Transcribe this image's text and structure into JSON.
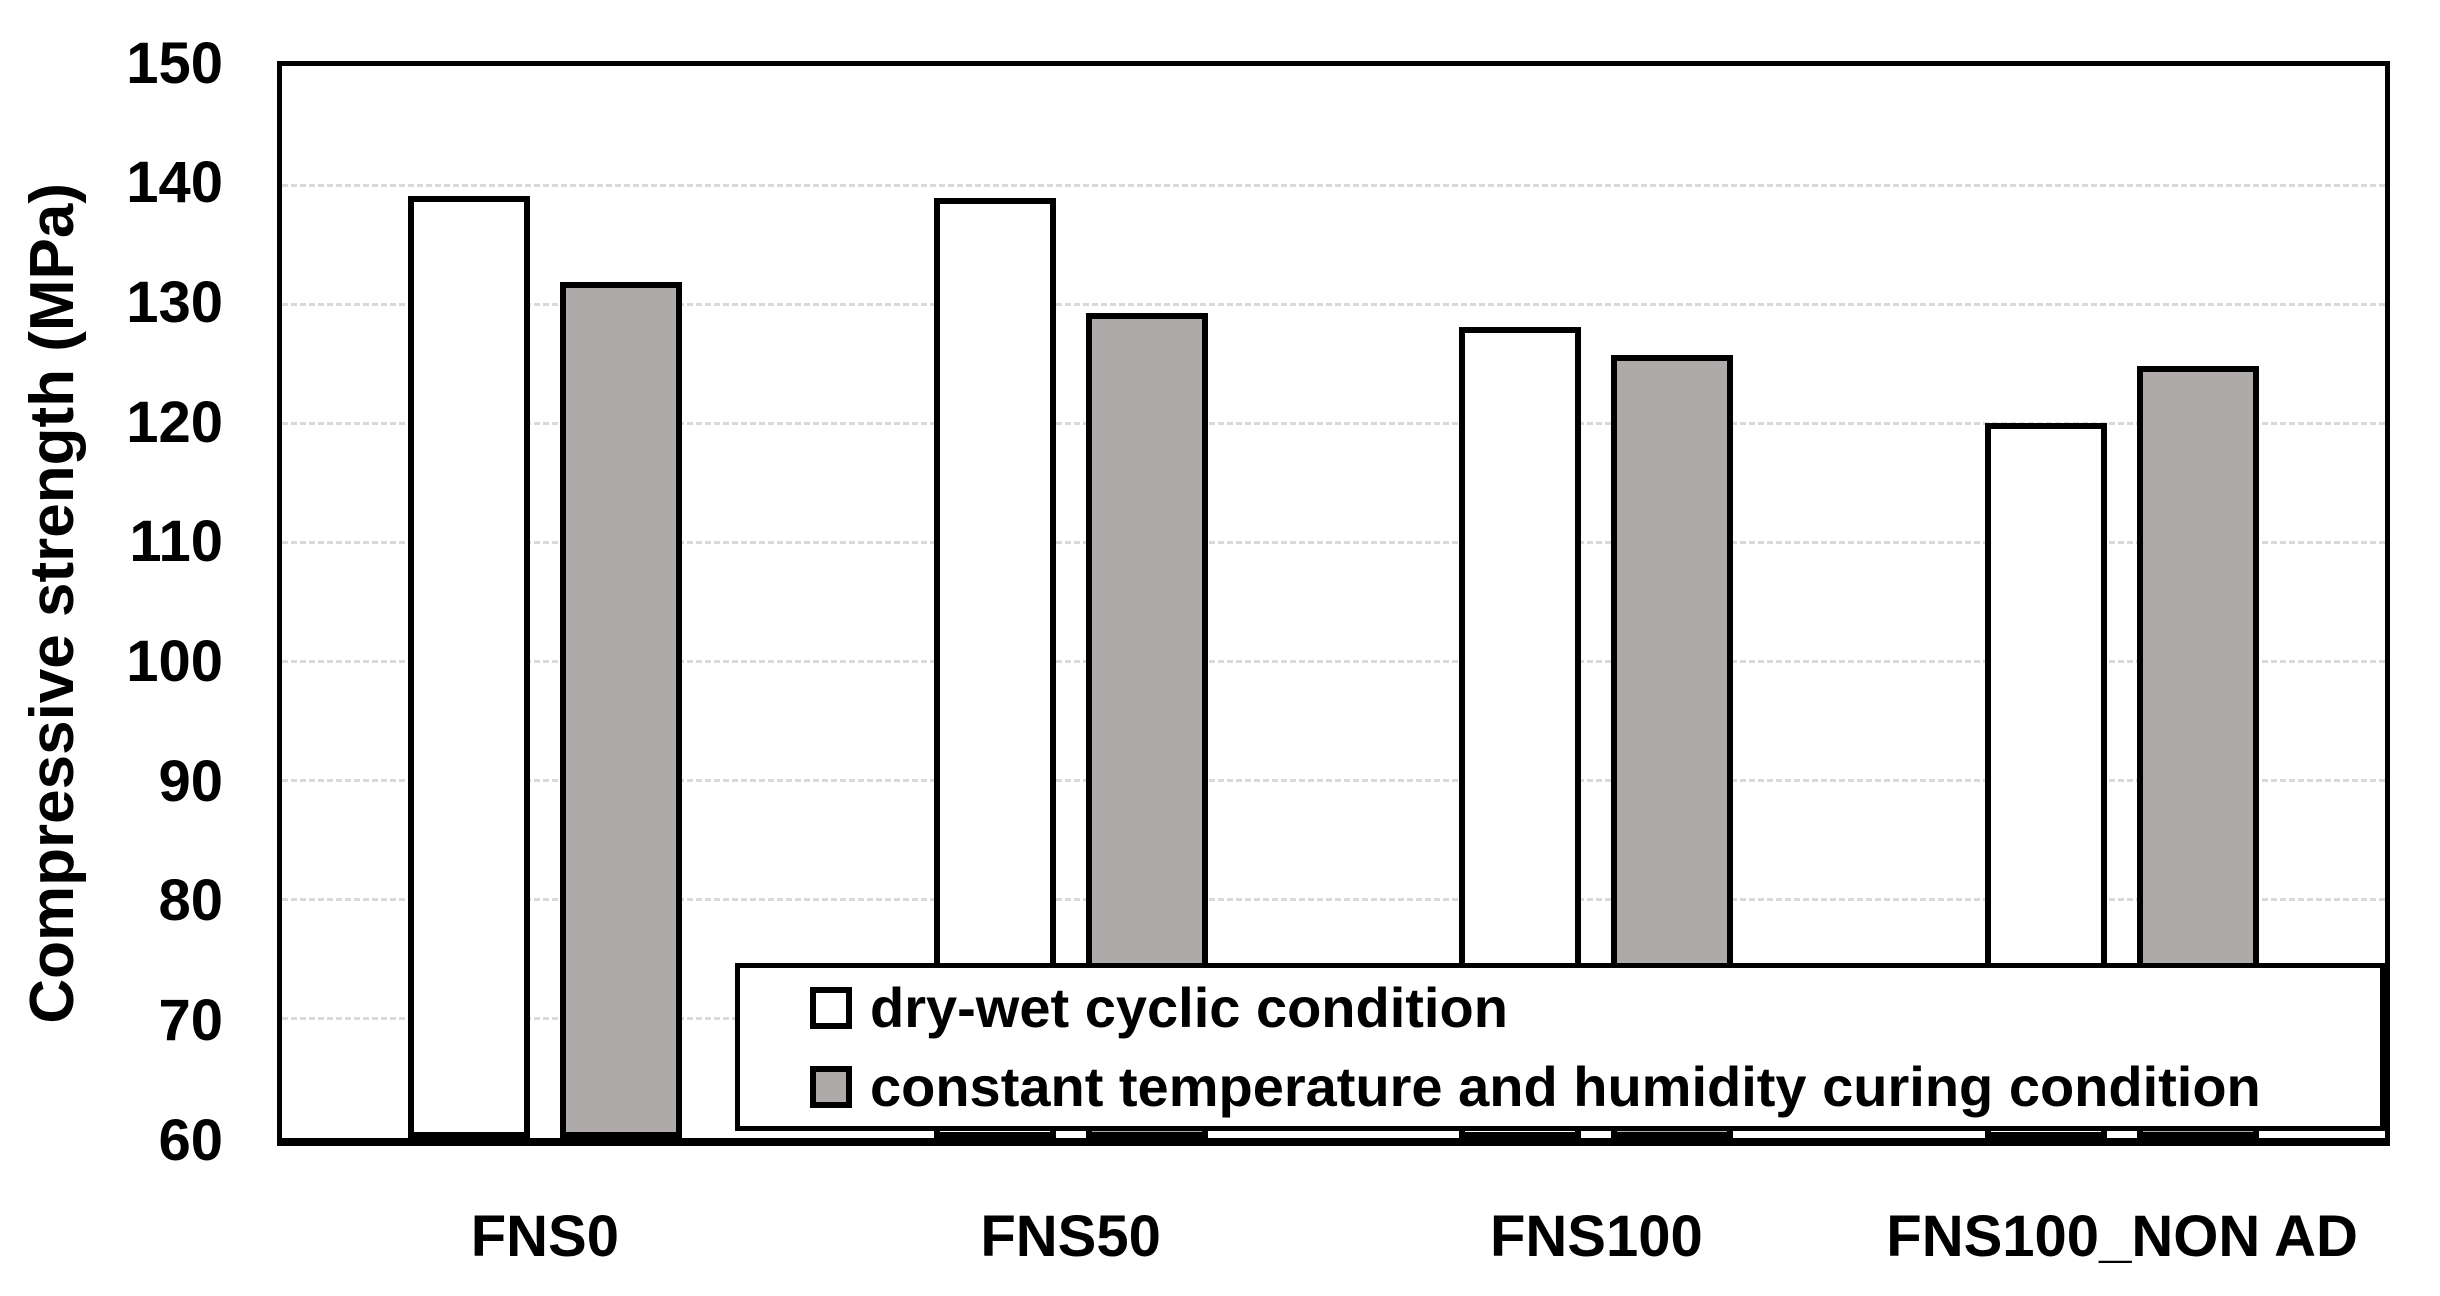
{
  "chart_data": {
    "type": "bar",
    "title": "",
    "xlabel": "",
    "ylabel": "Compressive strength (MPa)",
    "ylim": [
      60,
      150
    ],
    "ytick_step": 10,
    "ytick_labels": [
      "150",
      "140",
      "130",
      "120",
      "110",
      "100",
      "90",
      "80",
      "70",
      "60"
    ],
    "categories": [
      "FNS0",
      "FNS50",
      "FNS100",
      "FNS100_NON AD"
    ],
    "series": [
      {
        "name": "dry-wet cyclic condition",
        "fill": "#ffffff",
        "outline": "#000000",
        "values": [
          139.1,
          138.9,
          128.1,
          120.0
        ]
      },
      {
        "name": "constant temperature and humidity curing condition",
        "fill": "#aeaaaa",
        "outline": "#000000",
        "values": [
          131.9,
          129.3,
          125.7,
          124.8
        ]
      }
    ],
    "grid": {
      "show": true,
      "style": "dashed",
      "color": "#d9d9d9",
      "tick_values": [
        140,
        130,
        120,
        110,
        100,
        90,
        80,
        70
      ]
    },
    "legend": {
      "position": "inside-bottom",
      "border_color": "#000000",
      "background": "#ffffff"
    },
    "axis_color": "#000000",
    "plot_background": "#ffffff"
  }
}
